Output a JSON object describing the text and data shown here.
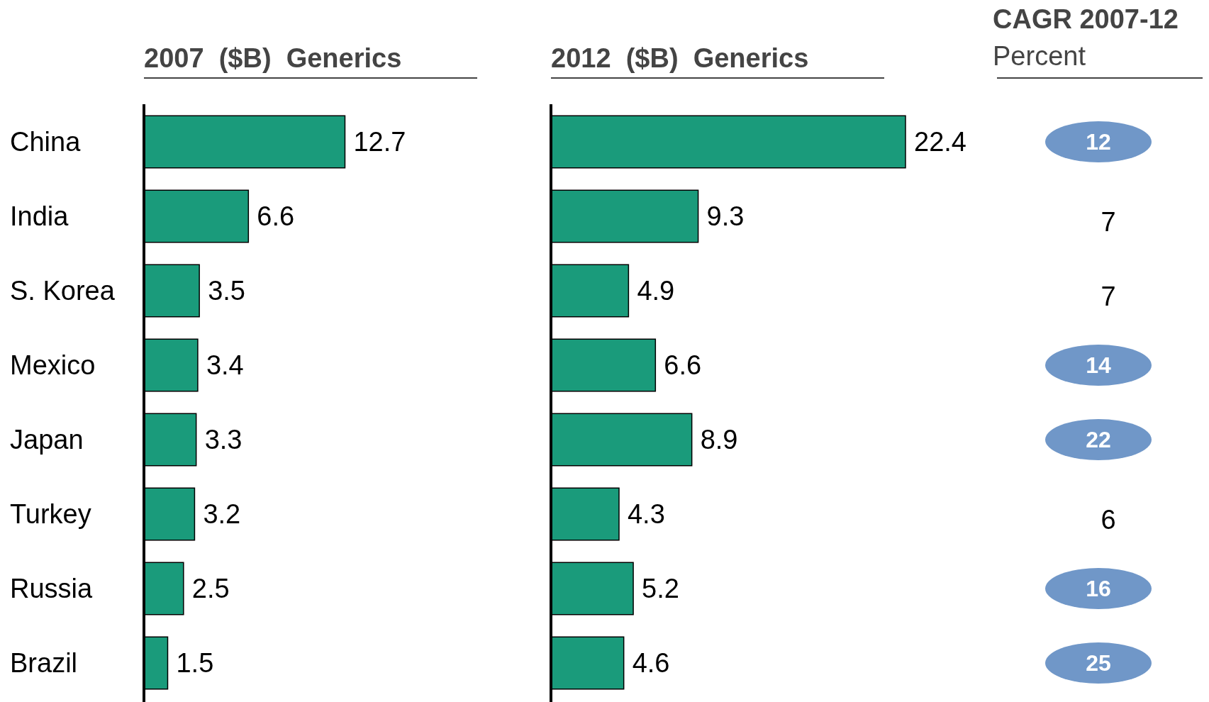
{
  "chart_data": [
    {
      "type": "bar",
      "orientation": "horizontal",
      "title": "2007  ($B)  Generics",
      "categories": [
        "China",
        "India",
        "S. Korea",
        "Mexico",
        "Japan",
        "Turkey",
        "Russia",
        "Brazil"
      ],
      "values": [
        12.7,
        6.6,
        3.5,
        3.4,
        3.3,
        3.2,
        2.5,
        1.5
      ],
      "color": "#1a9b7b",
      "data_labels": true
    },
    {
      "type": "bar",
      "orientation": "horizontal",
      "title": "2012  ($B)  Generics",
      "categories": [
        null,
        null,
        null,
        null,
        null,
        null,
        null,
        null
      ],
      "values": [
        22.4,
        9.3,
        4.9,
        6.6,
        8.9,
        4.3,
        5.2,
        4.6
      ],
      "color": "#1a9b7b",
      "data_labels": true
    },
    {
      "type": "other",
      "title": "CAGR 2007-12",
      "subtitle": "Percent",
      "annotations": [
        "12",
        "7",
        "7",
        "14",
        "22",
        "6",
        "16",
        "25"
      ],
      "colors": [
        "#7097c8",
        null,
        null,
        "#7097c8",
        "#7097c8",
        null,
        "#7097c8",
        "#7097c8"
      ]
    }
  ]
}
